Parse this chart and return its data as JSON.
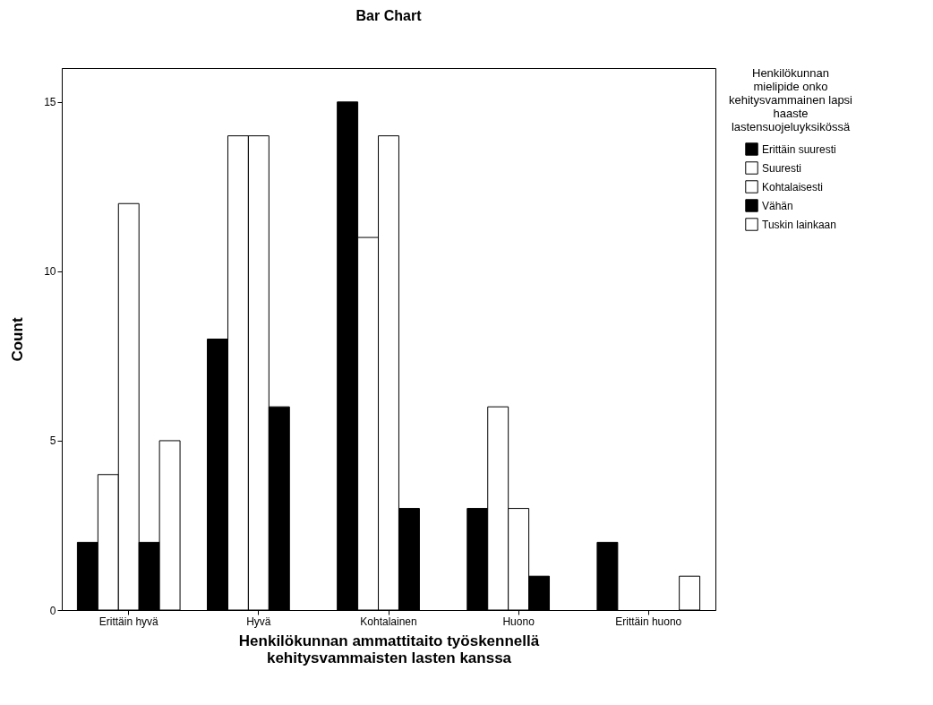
{
  "chart_data": {
    "type": "bar",
    "title": "Bar Chart",
    "xlabel": "Henkilökunnan ammattitaito työskennellä kehitysvammaisten lasten kanssa",
    "ylabel": "Count",
    "legend_title": "Henkilökunnan mielipide onko kehitysvammainen lapsi haaste lastensuojeluyksikössä",
    "categories": [
      "Erittäin hyvä",
      "Hyvä",
      "Kohtalainen",
      "Huono",
      "Erittäin huono"
    ],
    "series": [
      {
        "name": "Erittäin suuresti",
        "color": "#000000",
        "values": [
          2,
          8,
          15,
          3,
          2
        ]
      },
      {
        "name": "Suuresti",
        "color": "#ffffff",
        "values": [
          4,
          14,
          11,
          6,
          null
        ]
      },
      {
        "name": "Kohtalaisesti",
        "color": "#ffffff",
        "values": [
          12,
          14,
          14,
          3,
          null
        ]
      },
      {
        "name": "Vähän",
        "color": "#000000",
        "values": [
          2,
          6,
          3,
          1,
          null
        ]
      },
      {
        "name": "Tuskin lainkaan",
        "color": "#ffffff",
        "values": [
          5,
          null,
          null,
          null,
          1
        ]
      }
    ],
    "ylim": [
      0,
      16
    ],
    "yticks": [
      0,
      5,
      10,
      15
    ],
    "grid": false,
    "legend": "right"
  }
}
